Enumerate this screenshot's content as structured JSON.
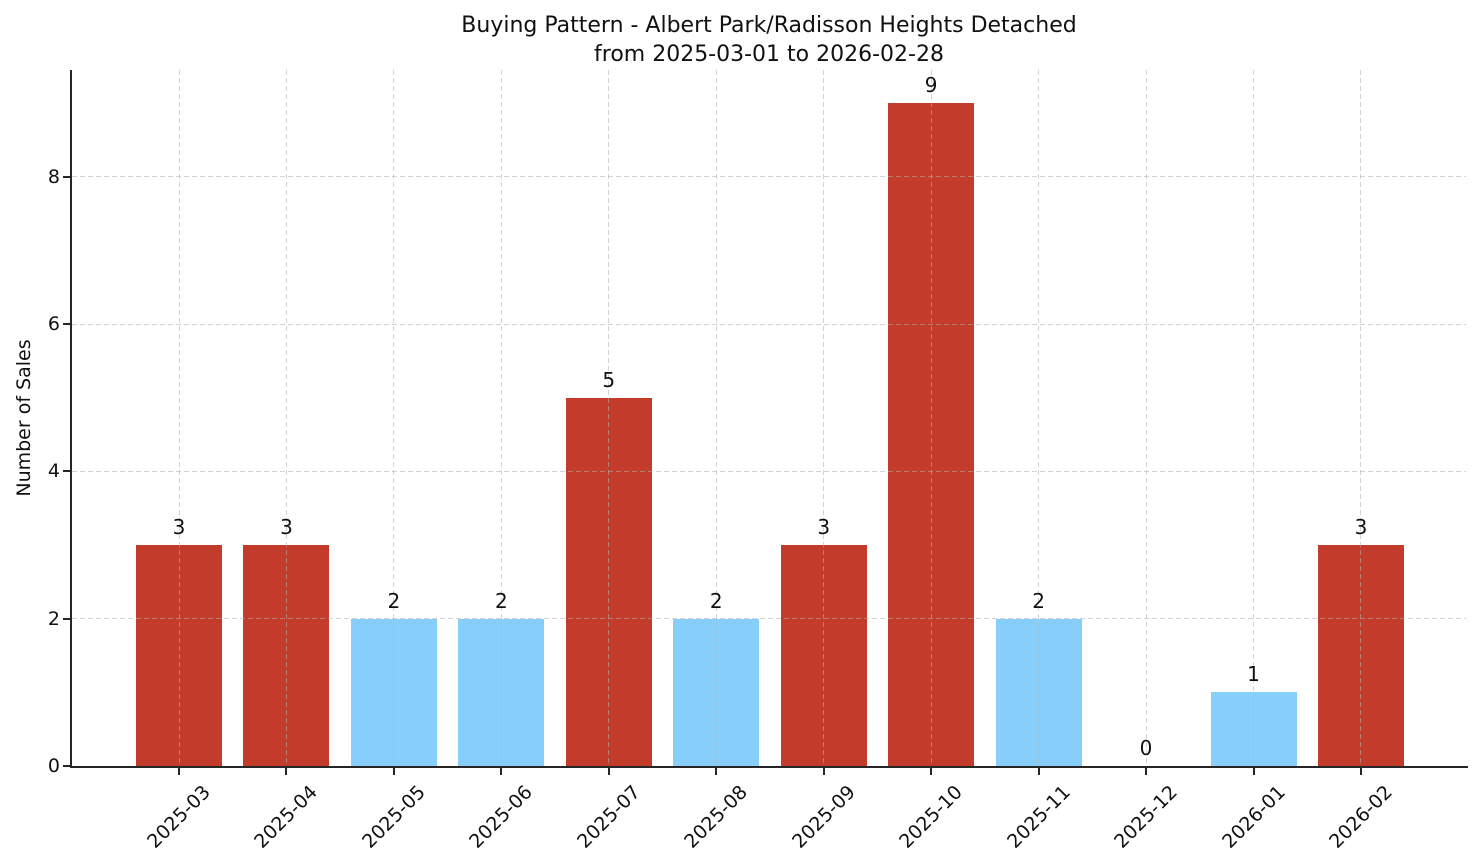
{
  "title": {
    "line1": "Buying Pattern - Albert Park/Radisson Heights Detached",
    "line2": "from 2025-03-01 to 2026-02-28"
  },
  "chart_data": {
    "type": "bar",
    "title": "Buying Pattern - Albert Park/Radisson Heights Detached\nfrom 2025-03-01 to 2026-02-28",
    "xlabel": "",
    "ylabel": "Number of Sales",
    "categories": [
      "2025-03",
      "2025-04",
      "2025-05",
      "2025-06",
      "2025-07",
      "2025-08",
      "2025-09",
      "2025-10",
      "2025-11",
      "2025-12",
      "2026-01",
      "2026-02"
    ],
    "values": [
      3,
      3,
      2,
      2,
      5,
      2,
      3,
      9,
      2,
      0,
      1,
      3
    ],
    "value_labels": [
      "3",
      "3",
      "2",
      "2",
      "5",
      "2",
      "3",
      "9",
      "2",
      "0",
      "1",
      "3"
    ],
    "bar_colors": [
      "#c23b2b",
      "#c23b2b",
      "#87cefa",
      "#87cefa",
      "#c23b2b",
      "#87cefa",
      "#c23b2b",
      "#c23b2b",
      "#87cefa",
      "#87cefa",
      "#87cefa",
      "#c23b2b"
    ],
    "yticks": [
      0,
      2,
      4,
      6,
      8
    ],
    "ylim": [
      0,
      9.45
    ],
    "grid": true,
    "grid_style": "dashed",
    "grid_over_bars": true,
    "legend": null,
    "x_tick_rotation_deg": 45,
    "colors": {
      "bar_red": "#c23b2b",
      "bar_blue": "#87cefa",
      "grid": "#b0b0b0",
      "spine": "#262626",
      "text": "#111111",
      "background": "#ffffff"
    }
  }
}
